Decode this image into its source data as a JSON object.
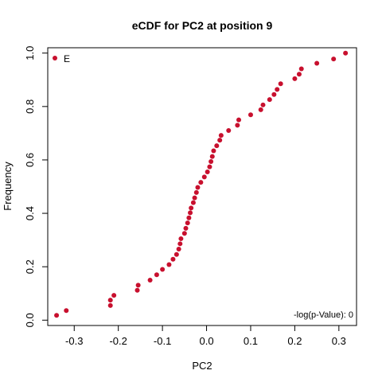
{
  "chart_data": {
    "type": "scatter",
    "title": "eCDF for PC2 at position 9",
    "xlabel": "PC2",
    "ylabel": "Frequency",
    "xlim": [
      -0.36,
      0.34
    ],
    "ylim": [
      -0.02,
      1.02
    ],
    "x_ticks": [
      -0.3,
      -0.2,
      -0.1,
      0.0,
      0.1,
      0.2,
      0.3
    ],
    "x_tick_labels": [
      "-0.3",
      "-0.2",
      "-0.1",
      "0.0",
      "0.1",
      "0.2",
      "0.3"
    ],
    "y_ticks": [
      0.0,
      0.2,
      0.4,
      0.6,
      0.8,
      1.0
    ],
    "y_tick_labels": [
      "0.0",
      "0.2",
      "0.4",
      "0.6",
      "0.8",
      "1.0"
    ],
    "legend": {
      "label": "E",
      "position": "top-left"
    },
    "annotation": "-log(p-Value): 0",
    "series": [
      {
        "name": "E",
        "color": "#c8102e",
        "points": [
          [
            -0.34,
            0.018
          ],
          [
            -0.318,
            0.036
          ],
          [
            -0.218,
            0.055
          ],
          [
            -0.218,
            0.075
          ],
          [
            -0.21,
            0.093
          ],
          [
            -0.157,
            0.112
          ],
          [
            -0.155,
            0.131
          ],
          [
            -0.128,
            0.15
          ],
          [
            -0.113,
            0.17
          ],
          [
            -0.1,
            0.19
          ],
          [
            -0.085,
            0.208
          ],
          [
            -0.076,
            0.228
          ],
          [
            -0.068,
            0.246
          ],
          [
            -0.063,
            0.266
          ],
          [
            -0.06,
            0.286
          ],
          [
            -0.058,
            0.305
          ],
          [
            -0.05,
            0.325
          ],
          [
            -0.047,
            0.344
          ],
          [
            -0.043,
            0.364
          ],
          [
            -0.04,
            0.383
          ],
          [
            -0.037,
            0.402
          ],
          [
            -0.035,
            0.42
          ],
          [
            -0.03,
            0.44
          ],
          [
            -0.027,
            0.458
          ],
          [
            -0.023,
            0.478
          ],
          [
            -0.02,
            0.497
          ],
          [
            -0.013,
            0.516
          ],
          [
            -0.005,
            0.536
          ],
          [
            0.002,
            0.555
          ],
          [
            0.007,
            0.574
          ],
          [
            0.01,
            0.594
          ],
          [
            0.013,
            0.613
          ],
          [
            0.016,
            0.634
          ],
          [
            0.023,
            0.653
          ],
          [
            0.03,
            0.674
          ],
          [
            0.033,
            0.692
          ],
          [
            0.05,
            0.71
          ],
          [
            0.07,
            0.73
          ],
          [
            0.073,
            0.75
          ],
          [
            0.1,
            0.769
          ],
          [
            0.123,
            0.788
          ],
          [
            0.128,
            0.806
          ],
          [
            0.143,
            0.826
          ],
          [
            0.153,
            0.845
          ],
          [
            0.16,
            0.864
          ],
          [
            0.168,
            0.885
          ],
          [
            0.2,
            0.904
          ],
          [
            0.21,
            0.921
          ],
          [
            0.215,
            0.941
          ],
          [
            0.25,
            0.962
          ],
          [
            0.288,
            0.978
          ],
          [
            0.315,
            1.0
          ]
        ]
      }
    ]
  }
}
